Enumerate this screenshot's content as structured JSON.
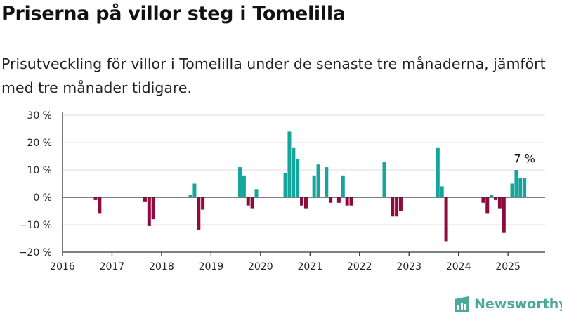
{
  "header": {
    "title": "Priserna på villor steg i Tomelilla",
    "subtitle": "Prisutveckling för villor i Tomelilla under de senaste tre månaderna, jämfört med tre månader tidigare."
  },
  "brand": {
    "name": "Newsworthy",
    "color": "#4aa89c"
  },
  "colors": {
    "positive": "#16a59c",
    "negative": "#8f0b3f",
    "axis": "#333333",
    "grid": "#dddddd"
  },
  "chart_data": {
    "type": "bar",
    "x_axis": {
      "min": 2016.0,
      "max": 2025.75,
      "ticks": [
        "2016",
        "2017",
        "2018",
        "2019",
        "2020",
        "2021",
        "2022",
        "2023",
        "2024",
        "2025"
      ]
    },
    "y_axis": {
      "min": -20,
      "max": 30,
      "ticks": [
        30,
        20,
        10,
        0,
        -10,
        -20
      ],
      "tick_labels": [
        "30 %",
        "20 %",
        "10 %",
        "0 %",
        "−10 %",
        "−20 %"
      ],
      "grid": true
    },
    "series": [
      {
        "points": [
          {
            "x": 2016.667,
            "y": -1
          },
          {
            "x": 2016.75,
            "y": -6
          },
          {
            "x": 2017.667,
            "y": -1.5
          },
          {
            "x": 2017.75,
            "y": -10.5
          },
          {
            "x": 2017.833,
            "y": -8
          },
          {
            "x": 2018.583,
            "y": 1
          },
          {
            "x": 2018.667,
            "y": 5
          },
          {
            "x": 2018.75,
            "y": -12
          },
          {
            "x": 2018.833,
            "y": -4.5
          },
          {
            "x": 2019.583,
            "y": 11
          },
          {
            "x": 2019.667,
            "y": 8
          },
          {
            "x": 2019.75,
            "y": -3
          },
          {
            "x": 2019.833,
            "y": -4
          },
          {
            "x": 2019.917,
            "y": 3
          },
          {
            "x": 2020.5,
            "y": 9
          },
          {
            "x": 2020.583,
            "y": 24
          },
          {
            "x": 2020.667,
            "y": 18
          },
          {
            "x": 2020.75,
            "y": 14
          },
          {
            "x": 2020.833,
            "y": -3
          },
          {
            "x": 2020.917,
            "y": -4
          },
          {
            "x": 2021.083,
            "y": 8
          },
          {
            "x": 2021.167,
            "y": 12
          },
          {
            "x": 2021.333,
            "y": 11
          },
          {
            "x": 2021.417,
            "y": -2
          },
          {
            "x": 2021.583,
            "y": -2
          },
          {
            "x": 2021.667,
            "y": 8
          },
          {
            "x": 2021.75,
            "y": -3
          },
          {
            "x": 2021.833,
            "y": -3
          },
          {
            "x": 2022.5,
            "y": 13
          },
          {
            "x": 2022.667,
            "y": -7
          },
          {
            "x": 2022.75,
            "y": -7
          },
          {
            "x": 2022.833,
            "y": -5
          },
          {
            "x": 2023.583,
            "y": 18
          },
          {
            "x": 2023.667,
            "y": 4
          },
          {
            "x": 2023.75,
            "y": -16
          },
          {
            "x": 2024.5,
            "y": -2
          },
          {
            "x": 2024.583,
            "y": -6
          },
          {
            "x": 2024.667,
            "y": 1
          },
          {
            "x": 2024.75,
            "y": -1
          },
          {
            "x": 2024.833,
            "y": -4
          },
          {
            "x": 2024.917,
            "y": -13
          },
          {
            "x": 2025.083,
            "y": 5
          },
          {
            "x": 2025.167,
            "y": 10
          },
          {
            "x": 2025.25,
            "y": 7
          },
          {
            "x": 2025.333,
            "y": 7
          }
        ]
      }
    ],
    "annotation": {
      "text": "7 %",
      "x": 2025.333,
      "y": 7
    }
  }
}
